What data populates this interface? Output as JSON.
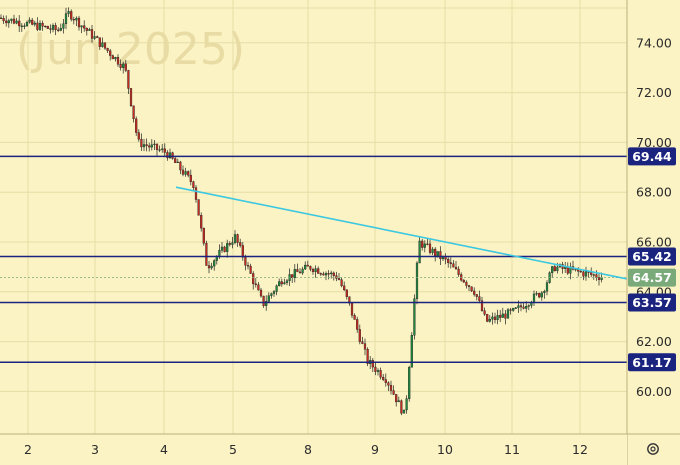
{
  "watermark": "(Jun 2025)",
  "settings_icon": "gear-icon",
  "colors": {
    "background": "#fbf3c4",
    "grid": "#e6dca6",
    "up": "#1f8a3e",
    "down": "#c62a20",
    "level_line": "#1a237e",
    "level_label_bg": "#1a237e",
    "trendline": "#3cc8e0",
    "current_price_bg": "#7aaa7a"
  },
  "chart_data": {
    "type": "candlestick",
    "x_ticks": [
      "2",
      "3",
      "4",
      "5",
      "8",
      "9",
      "10",
      "11",
      "12"
    ],
    "y_ticks": [
      "60.00",
      "62.00",
      "64.00",
      "66.00",
      "68.00",
      "70.00",
      "72.00",
      "74.00"
    ],
    "ylim": [
      58.5,
      76.5
    ],
    "levels": [
      {
        "value": 69.44,
        "label": "69.44"
      },
      {
        "value": 65.42,
        "label": "65.42"
      },
      {
        "value": 63.57,
        "label": "63.57"
      },
      {
        "value": 61.17,
        "label": "61.17"
      }
    ],
    "current_price": {
      "value": 64.57,
      "label": "64.57"
    },
    "trendline": {
      "from": {
        "day": "4",
        "price": 68.2
      },
      "to": {
        "day": "12",
        "price": 64.9
      }
    },
    "ohlc_waypoints": [
      {
        "day": "2",
        "price": 75.0
      },
      {
        "day": "2",
        "price": 74.5
      },
      {
        "day": "3",
        "price": 75.2
      },
      {
        "day": "3",
        "price": 73.0
      },
      {
        "day": "4",
        "price": 70.0
      },
      {
        "day": "4",
        "price": 69.6
      },
      {
        "day": "4",
        "price": 68.3
      },
      {
        "day": "5",
        "price": 65.0
      },
      {
        "day": "5",
        "price": 66.2
      },
      {
        "day": "5",
        "price": 63.5
      },
      {
        "day": "8",
        "price": 64.5
      },
      {
        "day": "8",
        "price": 65.0
      },
      {
        "day": "8",
        "price": 64.6
      },
      {
        "day": "9",
        "price": 63.5
      },
      {
        "day": "9",
        "price": 61.2
      },
      {
        "day": "9",
        "price": 60.5
      },
      {
        "day": "9",
        "price": 59.0
      },
      {
        "day": "10",
        "price": 66.0
      },
      {
        "day": "10",
        "price": 65.2
      },
      {
        "day": "10",
        "price": 64.0
      },
      {
        "day": "11",
        "price": 62.8
      },
      {
        "day": "11",
        "price": 63.2
      },
      {
        "day": "11",
        "price": 64.0
      },
      {
        "day": "12",
        "price": 65.0
      },
      {
        "day": "12",
        "price": 64.6
      }
    ]
  }
}
